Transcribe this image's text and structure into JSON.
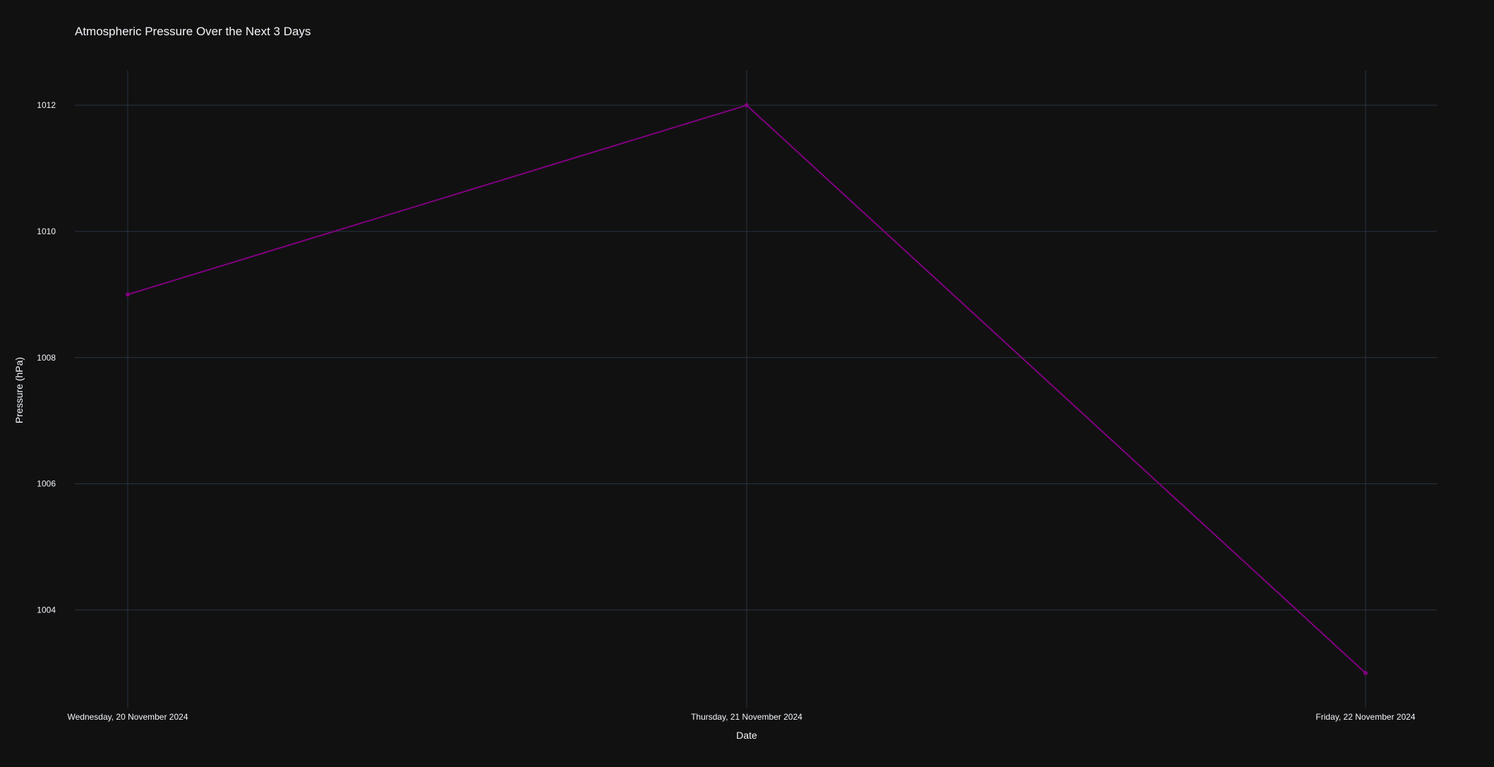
{
  "chart_data": {
    "type": "line",
    "title": "Atmospheric Pressure Over the Next 3 Days",
    "xlabel": "Date",
    "ylabel": "Pressure (hPa)",
    "categories": [
      "Wednesday, 20 November 2024",
      "Thursday, 21 November 2024",
      "Friday, 22 November 2024"
    ],
    "series": [
      {
        "values": [
          1009,
          1012,
          1003
        ],
        "color": "#800080"
      }
    ],
    "yticks": [
      "1004",
      "1006",
      "1008",
      "1010",
      "1012"
    ],
    "ylim": [
      1002.45,
      1012.55
    ],
    "grid": true,
    "legend": "none",
    "colors": {
      "background": "#111111",
      "grid": "#283442",
      "text": "#f2f5fa",
      "line": "#800080"
    }
  }
}
